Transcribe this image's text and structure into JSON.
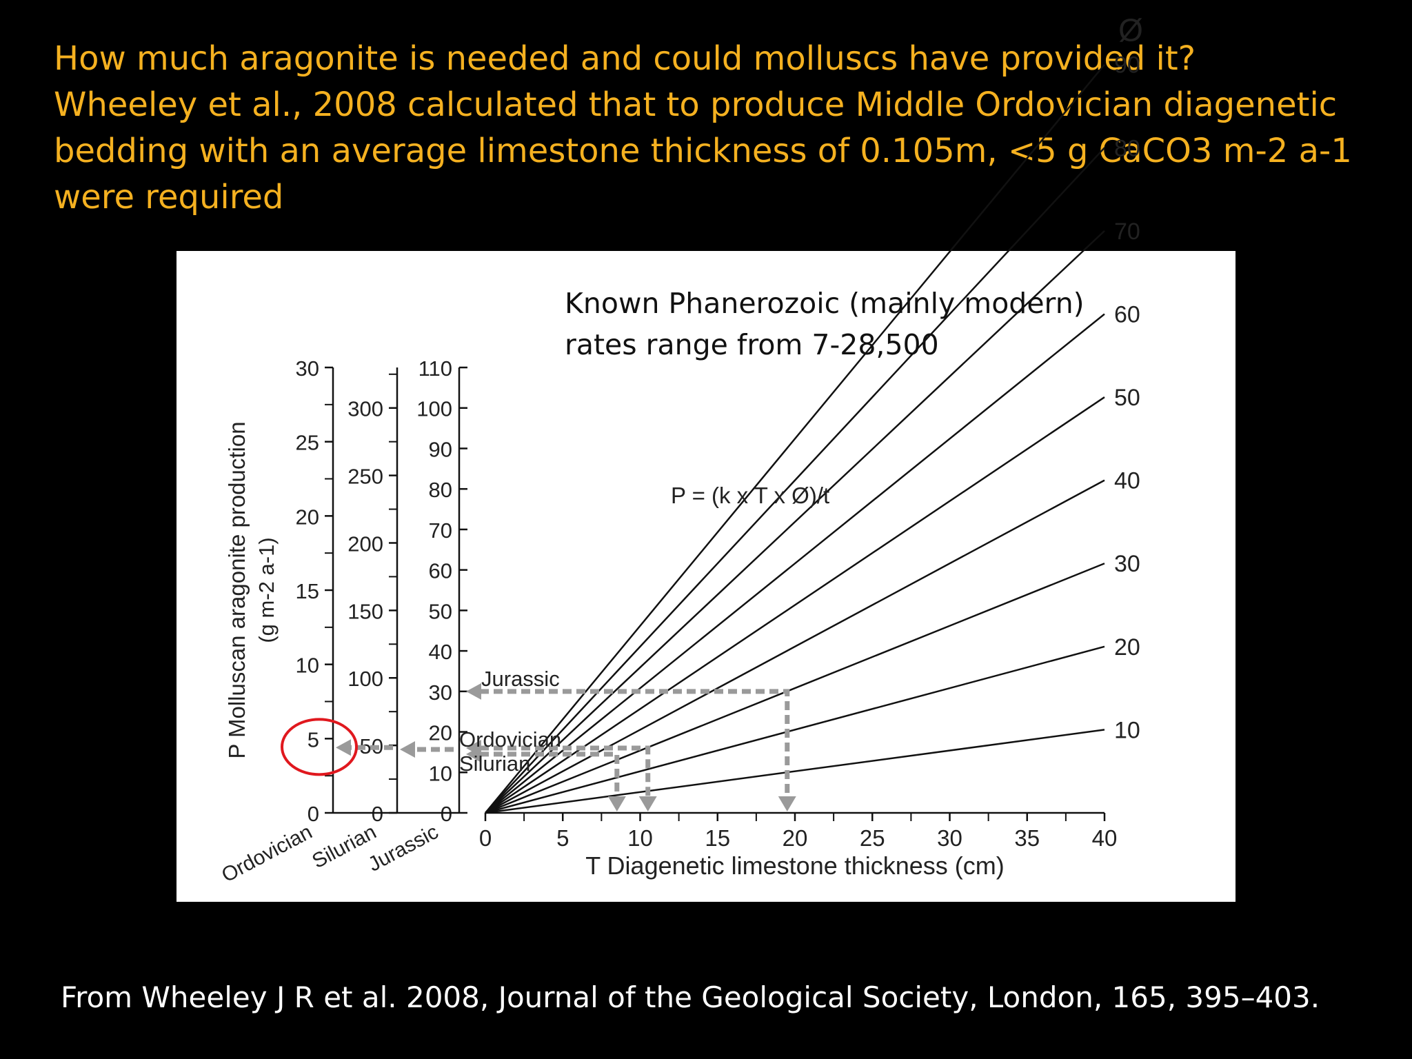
{
  "question": {
    "lines": [
      "How much aragonite  is needed and could molluscs have provided it?",
      "Wheeley et al., 2008 calculated that to produce Middle Ordovician  diagenetic",
      "bedding with an average limestone thickness of 0.105m, <5 g CaCO3 m-2 a-1",
      "were required"
    ]
  },
  "note": {
    "lines": [
      "Known Phanerozoic (mainly modern)",
      "rates range from 7-28,500"
    ]
  },
  "citation": "From Wheeley J  R et al. 2008, Journal of the Geological Society, London,  165, 395–403.",
  "colors": {
    "question": "#f5b120",
    "background": "#000000",
    "panel": "#ffffff",
    "lines": "#111111",
    "arrows": "#9a9a9a",
    "highlight_circle": "#e0181e"
  },
  "chart_data": {
    "type": "line",
    "formula": "P = (k x T x Ø)/t",
    "xlabel": "T Diagenetic limestone thickness (cm)",
    "xlim": [
      0,
      40
    ],
    "xticks": [
      0,
      5,
      10,
      15,
      20,
      25,
      30,
      35,
      40
    ],
    "ylabel": "P Molluscan aragonite production",
    "ylabel_units": "(g m-2 a-1)",
    "legend_title": "Ø",
    "series": [
      {
        "name": "10",
        "x": [
          0,
          40
        ],
        "y": [
          0,
          5.6
        ]
      },
      {
        "name": "20",
        "x": [
          0,
          40
        ],
        "y": [
          0,
          11.2
        ]
      },
      {
        "name": "30",
        "x": [
          0,
          40
        ],
        "y": [
          0,
          16.8
        ]
      },
      {
        "name": "40",
        "x": [
          0,
          40
        ],
        "y": [
          0,
          22.4
        ]
      },
      {
        "name": "50",
        "x": [
          0,
          40
        ],
        "y": [
          0,
          28.0
        ]
      },
      {
        "name": "60",
        "x": [
          0,
          40
        ],
        "y": [
          0,
          33.6
        ]
      },
      {
        "name": "70",
        "x": [
          0,
          40
        ],
        "y": [
          0,
          39.2
        ]
      },
      {
        "name": "80",
        "x": [
          0,
          40
        ],
        "y": [
          0,
          44.8
        ]
      },
      {
        "name": "90",
        "x": [
          0,
          40
        ],
        "y": [
          0,
          50.4
        ]
      }
    ],
    "y_axes": [
      {
        "name": "Ordovician",
        "ylim": [
          0,
          30
        ],
        "ticks": [
          0,
          5,
          10,
          15,
          20,
          25,
          30
        ],
        "minor": [
          2.5,
          7.5,
          12.5,
          17.5,
          22.5,
          27.5
        ]
      },
      {
        "name": "Silurian",
        "ylim": [
          0,
          330
        ],
        "ticks": [
          0,
          50,
          100,
          150,
          200,
          250,
          300
        ],
        "minor": [
          25,
          75,
          125,
          175,
          225,
          275,
          325
        ]
      },
      {
        "name": "Jurassic",
        "ylim": [
          0,
          110
        ],
        "ticks": [
          0,
          10,
          20,
          30,
          40,
          50,
          60,
          70,
          80,
          90,
          100,
          110
        ],
        "minor": [],
        "tick_labels": [
          "0",
          "10",
          "20",
          "30",
          "40",
          "50",
          "60",
          "70",
          "80",
          "90",
          "100",
          "110"
        ]
      }
    ],
    "annotations": [
      {
        "label": "Jurassic",
        "axis": "Jurassic",
        "value": 30,
        "thickness": 19.5
      },
      {
        "label": "Ordovician",
        "axis": "Jurassic",
        "value": 16,
        "thickness": 10.5
      },
      {
        "label": "Silurian",
        "axis": "Jurassic",
        "value": 14.5,
        "thickness": 8.5
      }
    ],
    "arrow_left": [
      {
        "axis": "Silurian",
        "value": 47
      },
      {
        "axis": "Ordovician",
        "value": 4.4
      }
    ],
    "highlight": {
      "axis": "Ordovician",
      "value": 5
    }
  }
}
